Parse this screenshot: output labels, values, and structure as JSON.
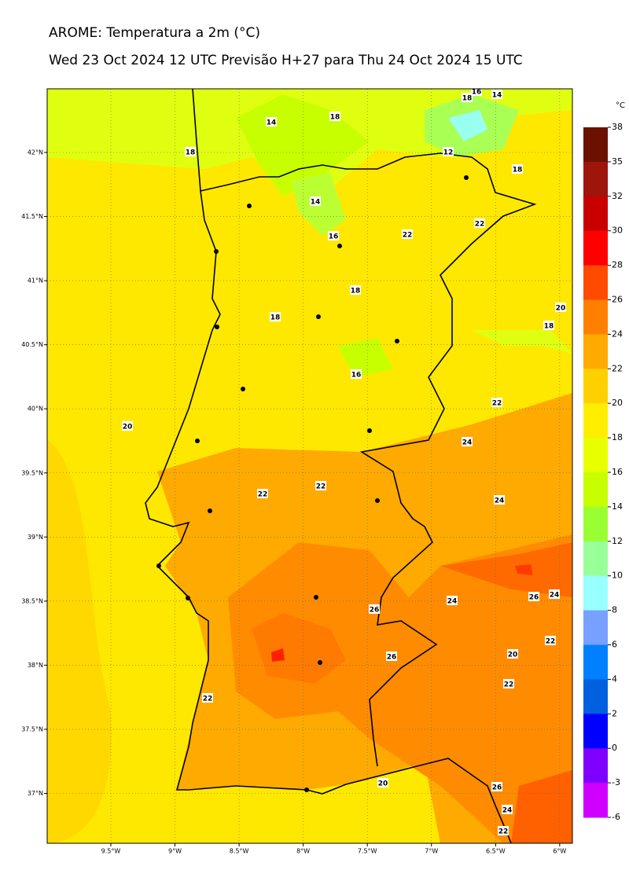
{
  "header": {
    "title": "AROME: Temperatura a 2m (°C)",
    "subtitle": "Wed 23 Oct 2024 12 UTC Previsão H+27 para Thu 24 Oct 2024 15 UTC"
  },
  "map": {
    "lon_ticks": [
      {
        "value": -9.5,
        "label": "9.5°W"
      },
      {
        "value": -9,
        "label": "9°W"
      },
      {
        "value": -8.5,
        "label": "8.5°W"
      },
      {
        "value": -8,
        "label": "8°W"
      },
      {
        "value": -7.5,
        "label": "7.5°W"
      },
      {
        "value": -7,
        "label": "7°W"
      },
      {
        "value": -6.5,
        "label": "6.5°W"
      },
      {
        "value": -6,
        "label": "6°W"
      }
    ],
    "lat_ticks": [
      {
        "value": 42,
        "label": "42°N"
      },
      {
        "value": 41.5,
        "label": "41.5°N"
      },
      {
        "value": 41,
        "label": "41°N"
      },
      {
        "value": 40.5,
        "label": "40.5°N"
      },
      {
        "value": 40,
        "label": "40°N"
      },
      {
        "value": 39.5,
        "label": "39.5°N"
      },
      {
        "value": 39,
        "label": "39°N"
      },
      {
        "value": 38.5,
        "label": "38.5°N"
      },
      {
        "value": 38,
        "label": "38°N"
      },
      {
        "value": 37.5,
        "label": "37.5°N"
      },
      {
        "value": 37,
        "label": "37°N"
      }
    ],
    "contour_labels": [
      16,
      18,
      14,
      14,
      18,
      18,
      12,
      18,
      14,
      16,
      22,
      22,
      18,
      18,
      20,
      18,
      16,
      22,
      20,
      24,
      22,
      22,
      24,
      26,
      24,
      26,
      24,
      26,
      22,
      20,
      22,
      22,
      20,
      26,
      24,
      22
    ]
  },
  "colorbar": {
    "unit": "°C",
    "levels": [
      38,
      35,
      32,
      30,
      28,
      26,
      24,
      22,
      20,
      18,
      16,
      14,
      12,
      10,
      8,
      6,
      4,
      2,
      0,
      -3,
      -6
    ],
    "colors": [
      "#6b1100",
      "#9e150c",
      "#c80000",
      "#ff0000",
      "#ff4a00",
      "#ff8000",
      "#ffaa00",
      "#ffd000",
      "#ffee00",
      "#e8ff00",
      "#c8ff00",
      "#99ff33",
      "#99ff99",
      "#99ffff",
      "#77a0ff",
      "#0080ff",
      "#0060e0",
      "#0000ff",
      "#8000ff",
      "#d000ff"
    ]
  }
}
